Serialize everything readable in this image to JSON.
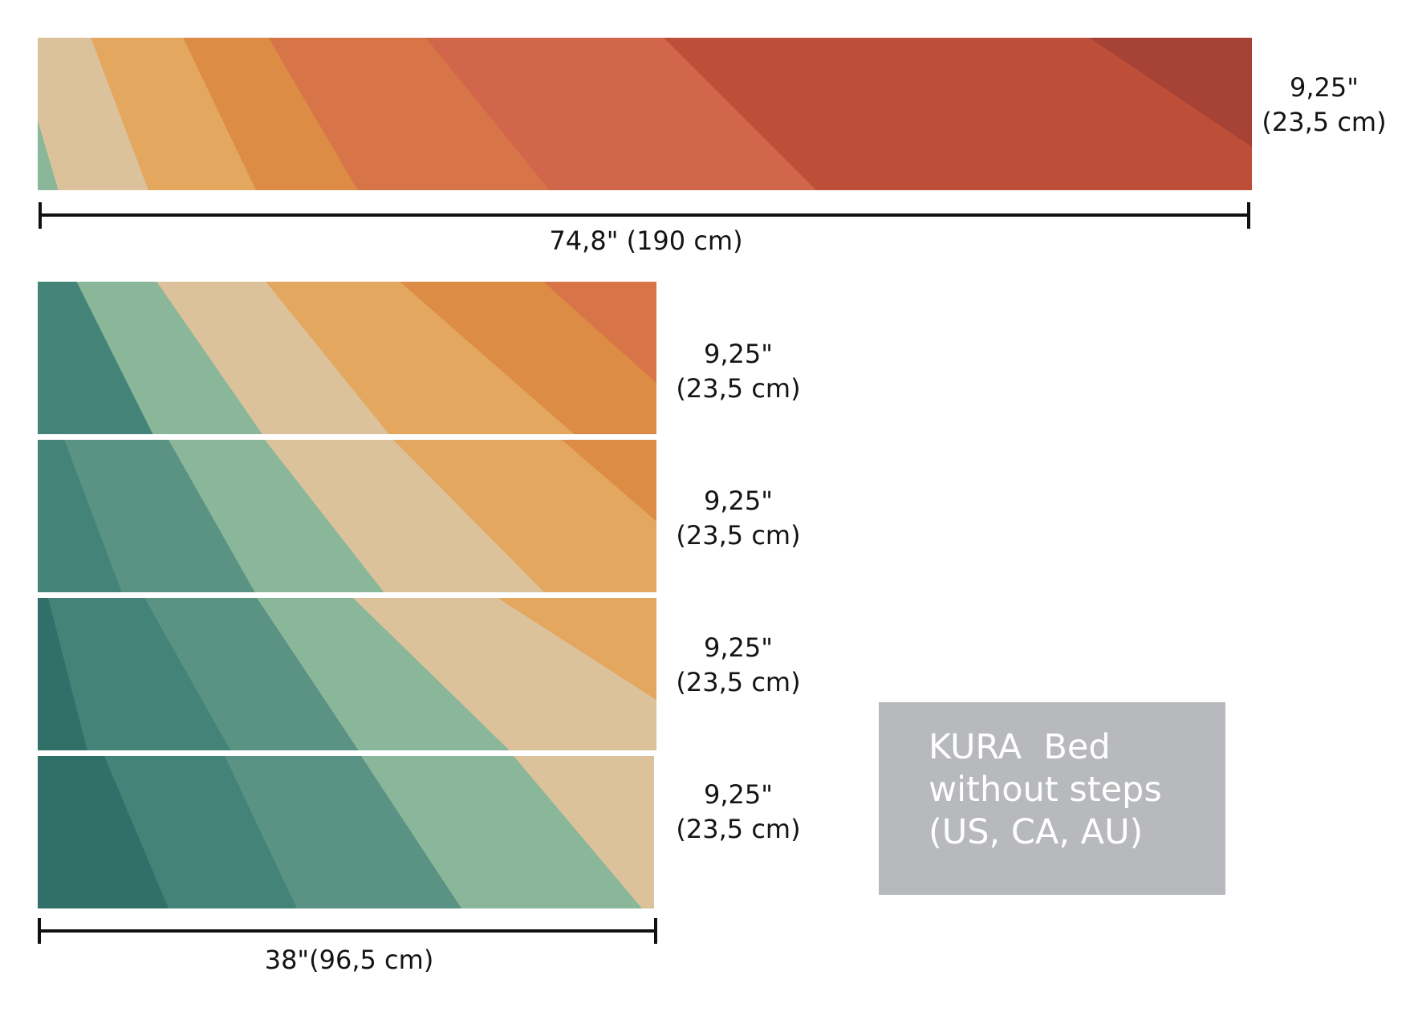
{
  "top_panel": {
    "height_label": {
      "inches": "9,25\"",
      "cm": "(23,5 cm)"
    },
    "width_label": "74,8\"  (190 cm)"
  },
  "step_panels": [
    {
      "height_label": {
        "inches": "9,25\"",
        "cm": "(23,5 cm)"
      }
    },
    {
      "height_label": {
        "inches": "9,25\"",
        "cm": "(23,5 cm)"
      }
    },
    {
      "height_label": {
        "inches": "9,25\"",
        "cm": "(23,5 cm)"
      }
    },
    {
      "height_label": {
        "inches": "9,25\"",
        "cm": "(23,5 cm)"
      }
    }
  ],
  "step_width_label": "38\"(96,5 cm)",
  "info_box": {
    "lines": [
      "KURA  Bed",
      "without steps",
      "(US, CA, AU)"
    ]
  },
  "colors": {
    "band_colors": [
      "#307069",
      "#448377",
      "#5a9283",
      "#8ab799",
      "#dcc29a",
      "#e3a75f",
      "#dc8c44",
      "#d87548",
      "#d2664b",
      "#bd4f39",
      "#a74237"
    ],
    "info_box_bg": "#b8b9bc",
    "dimension_line": "#111111"
  }
}
